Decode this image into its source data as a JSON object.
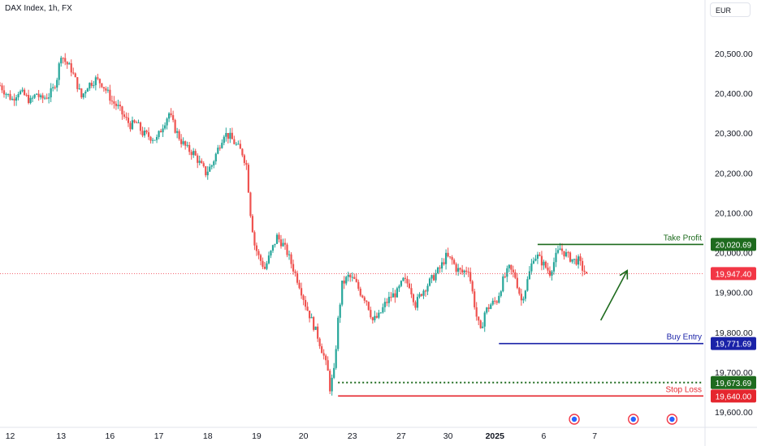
{
  "header": {
    "title": "DAX Index, 1h, FX",
    "currency": "EUR"
  },
  "chart_data": {
    "type": "candlestick",
    "title": "DAX Index, 1h, FX",
    "xlabel": "",
    "ylabel": "",
    "ylim": [
      19570,
      20650
    ],
    "grid": false,
    "y_ticks": [
      20500,
      20400,
      20300,
      20200,
      20100,
      20000,
      19900,
      19800,
      19700,
      19600
    ],
    "y_tick_labels": [
      "20,500.00",
      "20,400.00",
      "20,300.00",
      "20,200.00",
      "20,100.00",
      "20,000.00",
      "19,900.00",
      "19,800.00",
      "19,700.00",
      "19,600.00"
    ],
    "x_ticks": [
      "12",
      "13",
      "16",
      "17",
      "18",
      "19",
      "20",
      "23",
      "27",
      "30",
      "2025",
      "6",
      "7"
    ],
    "x_tick_positions": [
      5,
      30,
      54,
      78,
      102,
      126,
      149,
      173,
      197,
      220,
      243,
      267,
      292
    ],
    "x_range": [
      0,
      343
    ],
    "price_path": [
      [
        0,
        20420
      ],
      [
        3,
        20400
      ],
      [
        6,
        20385
      ],
      [
        9,
        20405
      ],
      [
        12,
        20395
      ],
      [
        15,
        20380
      ],
      [
        18,
        20400
      ],
      [
        20,
        20385
      ],
      [
        24,
        20395
      ],
      [
        26,
        20410
      ],
      [
        28,
        20440
      ],
      [
        30,
        20500
      ],
      [
        32,
        20480
      ],
      [
        35,
        20460
      ],
      [
        38,
        20420
      ],
      [
        40,
        20390
      ],
      [
        43,
        20420
      ],
      [
        47,
        20435
      ],
      [
        50,
        20425
      ],
      [
        53,
        20400
      ],
      [
        55,
        20380
      ],
      [
        58,
        20365
      ],
      [
        61,
        20340
      ],
      [
        64,
        20320
      ],
      [
        67,
        20325
      ],
      [
        70,
        20300
      ],
      [
        74,
        20290
      ],
      [
        77,
        20285
      ],
      [
        80,
        20320
      ],
      [
        83,
        20350
      ],
      [
        86,
        20310
      ],
      [
        89,
        20280
      ],
      [
        92,
        20260
      ],
      [
        95,
        20250
      ],
      [
        98,
        20225
      ],
      [
        101,
        20200
      ],
      [
        104,
        20220
      ],
      [
        107,
        20260
      ],
      [
        110,
        20300
      ],
      [
        113,
        20290
      ],
      [
        116,
        20270
      ],
      [
        119,
        20250
      ],
      [
        121,
        20220
      ],
      [
        123,
        20100
      ],
      [
        125,
        20020
      ],
      [
        127,
        19990
      ],
      [
        130,
        19960
      ],
      [
        133,
        20000
      ],
      [
        136,
        20040
      ],
      [
        139,
        20020
      ],
      [
        141,
        20000
      ],
      [
        144,
        19960
      ],
      [
        147,
        19920
      ],
      [
        150,
        19870
      ],
      [
        153,
        19830
      ],
      [
        156,
        19790
      ],
      [
        159,
        19740
      ],
      [
        161,
        19700
      ],
      [
        162,
        19660
      ],
      [
        164,
        19700
      ],
      [
        166,
        19830
      ],
      [
        168,
        19920
      ],
      [
        171,
        19940
      ],
      [
        174,
        19930
      ],
      [
        177,
        19900
      ],
      [
        180,
        19880
      ],
      [
        183,
        19830
      ],
      [
        186,
        19840
      ],
      [
        189,
        19870
      ],
      [
        192,
        19890
      ],
      [
        195,
        19900
      ],
      [
        198,
        19930
      ],
      [
        201,
        19920
      ],
      [
        204,
        19870
      ],
      [
        207,
        19900
      ],
      [
        210,
        19920
      ],
      [
        213,
        19940
      ],
      [
        216,
        19960
      ],
      [
        219,
        19990
      ],
      [
        222,
        19980
      ],
      [
        224,
        19960
      ],
      [
        227,
        19950
      ],
      [
        230,
        19960
      ],
      [
        232,
        19900
      ],
      [
        234,
        19840
      ],
      [
        236,
        19800
      ],
      [
        238,
        19850
      ],
      [
        241,
        19870
      ],
      [
        244,
        19880
      ],
      [
        247,
        19930
      ],
      [
        250,
        19960
      ],
      [
        253,
        19940
      ],
      [
        256,
        19880
      ],
      [
        258,
        19910
      ],
      [
        260,
        19950
      ],
      [
        262,
        19990
      ],
      [
        264,
        19990
      ],
      [
        267,
        19970
      ],
      [
        270,
        19950
      ],
      [
        273,
        19990
      ],
      [
        275,
        20010
      ],
      [
        277,
        20000
      ],
      [
        279,
        19990
      ],
      [
        282,
        19980
      ],
      [
        284,
        19980
      ],
      [
        286,
        19960
      ],
      [
        288,
        19947
      ]
    ],
    "last_price": 19947.4,
    "last_price_label": "19,947.40",
    "levels": [
      {
        "name": "Take Profit",
        "value": 20020.69,
        "label": "20,020.69",
        "color": "#1e6b1e",
        "style": "solid",
        "x_start": 264
      },
      {
        "name": "Buy Entry",
        "value": 19771.69,
        "label": "19,771.69",
        "color": "#1a22a8",
        "style": "solid",
        "x_start": 245
      },
      {
        "name": "",
        "value": 19673.69,
        "label": "19,673.69",
        "color": "#1e6b1e",
        "style": "dotted",
        "x_start": 166
      },
      {
        "name": "Stop Loss",
        "value": 19640.0,
        "label": "19,640.00",
        "color": "#e5262e",
        "style": "solid",
        "x_start": 166
      }
    ],
    "arrow": {
      "from": [
        295,
        19830
      ],
      "to": [
        308,
        19955
      ],
      "color": "#1e6b1e"
    },
    "up_color": "#26a69a",
    "down_color": "#ef5350",
    "last_price_color": "#f23645",
    "event_icons": [
      {
        "name": "event-icon",
        "x": 282
      },
      {
        "name": "event-icon",
        "x": 311
      },
      {
        "name": "event-icon",
        "x": 330
      }
    ]
  }
}
